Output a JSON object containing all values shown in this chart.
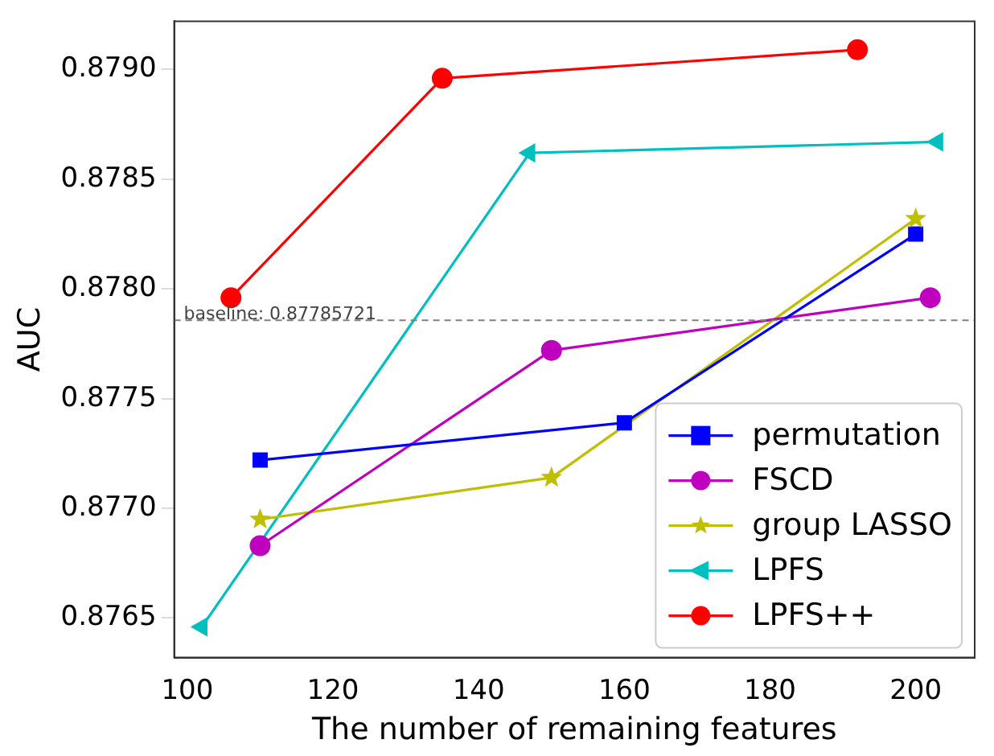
{
  "chart_data": {
    "type": "line",
    "xlabel": "The number of remaining features",
    "ylabel": "AUC",
    "xlim": [
      98.2,
      208.1
    ],
    "xticks": [
      100,
      120,
      140,
      160,
      180,
      200
    ],
    "ylim": [
      0.87632,
      0.87922
    ],
    "yticks": [
      0.8765,
      {
        "value": 0.877,
        "label": "0.8770"
      },
      0.8775,
      {
        "value": 0.878,
        "label": "0.8780"
      },
      0.8785,
      {
        "value": 0.879,
        "label": "0.8790"
      }
    ],
    "legend": "bottom right",
    "grid": false,
    "line_style": "solid",
    "ref_lines": [
      {
        "axis": "y",
        "value": 0.87785721,
        "label": "baseline: 0.87785721",
        "color": "#808080",
        "line_style": "dashed"
      }
    ],
    "series": [
      {
        "name": "permutation",
        "color": "#0000ff",
        "marker": "square",
        "x": [
          110,
          160,
          200
        ],
        "values": [
          0.87722,
          0.87739,
          0.87825
        ]
      },
      {
        "name": "FSCD",
        "color": "#bf00bf",
        "marker": "circle",
        "x": [
          110,
          150,
          202
        ],
        "values": [
          0.87683,
          0.87772,
          0.87796
        ]
      },
      {
        "name": "group LASSO",
        "color": "#bfbf00",
        "marker": "star",
        "x": [
          110,
          150,
          200
        ],
        "values": [
          0.87695,
          0.87714,
          0.87832
        ]
      },
      {
        "name": "LPFS",
        "color": "#00bfbf",
        "marker": "triangle",
        "x": [
          102,
          147,
          203
        ],
        "values": [
          0.87646,
          0.87862,
          0.87867
        ]
      },
      {
        "name": "LPFS++",
        "color": "#ff0000",
        "marker": "circle",
        "x": [
          106,
          135,
          192
        ],
        "values": [
          0.87796,
          0.87896,
          0.87909
        ]
      }
    ]
  }
}
